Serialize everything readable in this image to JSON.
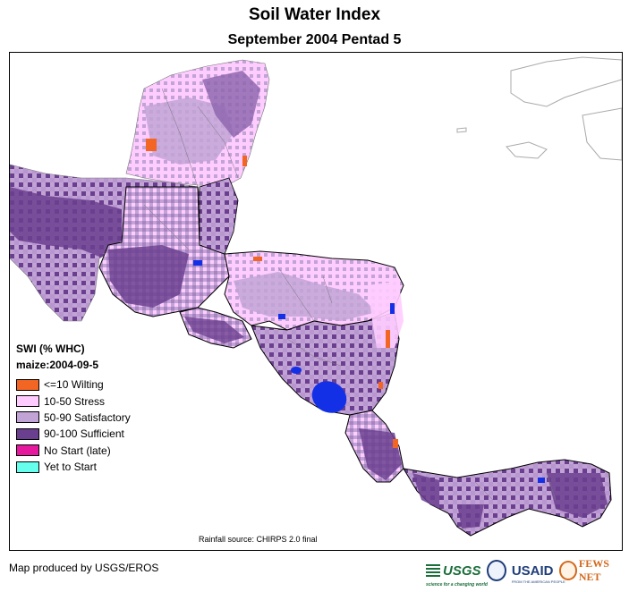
{
  "title": "Soil Water Index",
  "subtitle": "September 2004 Pentad 5",
  "legend": {
    "title": "SWI (% WHC)",
    "subtitle": "maize:2004-09-5",
    "items": [
      {
        "label": "<=10 Wilting",
        "color": "#f26522"
      },
      {
        "label": "10-50 Stress",
        "color": "#ffccff"
      },
      {
        "label": "50-90 Satisfactory",
        "color": "#c2a3d6"
      },
      {
        "label": "90-100 Sufficient",
        "color": "#6b3f8f"
      },
      {
        "label": "No Start (late)",
        "color": "#e6199e"
      },
      {
        "label": "Yet to Start",
        "color": "#66ffee"
      }
    ]
  },
  "rainfall_source": "Rainfall source: CHIRPS 2.0 final",
  "producer": "Map produced by USGS/EROS",
  "logos": {
    "usgs": "USGS",
    "usgs_tagline": "science for a changing world",
    "usaid": "USAID",
    "usaid_tagline": "FROM THE AMERICAN PEOPLE",
    "fews": "FEWS NET"
  },
  "colors": {
    "water_blue": "#1430e6",
    "border": "#000000",
    "admin_border": "#777777",
    "coast_outline": "#aaaaaa"
  }
}
